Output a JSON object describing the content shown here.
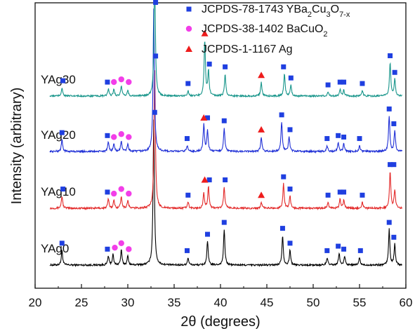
{
  "chart_data": {
    "type": "line",
    "xlabel": "2θ (degrees)",
    "ylabel": "Intensity (arbitrary)",
    "xlim": [
      20,
      60
    ],
    "x_ticks": [
      20,
      25,
      30,
      35,
      40,
      45,
      50,
      55,
      60
    ],
    "grid": false,
    "legend_placement": "top-right",
    "legend": [
      {
        "label_parts": [
          [
            "JCPDS-78-1743 YBa",
            false
          ],
          [
            "2",
            true
          ],
          [
            "Cu",
            false
          ],
          [
            "3",
            true
          ],
          [
            "O",
            false
          ],
          [
            "7-x",
            true
          ]
        ],
        "marker": "square",
        "color": "#1f3fe0"
      },
      {
        "label_parts": [
          [
            "JCPDS-38-1402 BaCuO",
            false
          ],
          [
            "2",
            true
          ]
        ],
        "marker": "circle",
        "color": "#f23ee8"
      },
      {
        "label_parts": [
          [
            "JCPDS-1-1167 Ag",
            false
          ]
        ],
        "marker": "triangle",
        "color": "#ee1c1c"
      }
    ],
    "series": [
      {
        "name": "YAg0",
        "color": "#000000",
        "peaks": [
          [
            22.9,
            0.1
          ],
          [
            27.9,
            0.06
          ],
          [
            28.4,
            0.07
          ],
          [
            29.3,
            0.1
          ],
          [
            30.0,
            0.06
          ],
          [
            32.8,
            0.98
          ],
          [
            36.5,
            0.05
          ],
          [
            38.6,
            0.16
          ],
          [
            40.4,
            0.24
          ],
          [
            46.7,
            0.2
          ],
          [
            47.5,
            0.1
          ],
          [
            51.5,
            0.05
          ],
          [
            52.8,
            0.08
          ],
          [
            53.4,
            0.06
          ],
          [
            55.0,
            0.05
          ],
          [
            58.2,
            0.24
          ],
          [
            58.8,
            0.14
          ]
        ],
        "markers": {
          "square": [
            22.9,
            27.8,
            32.9,
            36.4,
            38.6,
            40.4,
            46.7,
            47.5,
            51.5,
            52.7,
            53.3,
            55.1,
            58.2,
            58.7
          ],
          "circle": [
            28.6,
            29.3,
            30.1
          ],
          "triangle": []
        }
      },
      {
        "name": "YAg10",
        "color": "#e32a2a",
        "peaks": [
          [
            22.9,
            0.08
          ],
          [
            27.9,
            0.06
          ],
          [
            28.5,
            0.05
          ],
          [
            29.3,
            0.08
          ],
          [
            30.0,
            0.05
          ],
          [
            32.9,
            0.95
          ],
          [
            36.5,
            0.04
          ],
          [
            38.2,
            0.1
          ],
          [
            38.7,
            0.14
          ],
          [
            40.4,
            0.14
          ],
          [
            44.4,
            0.04
          ],
          [
            46.8,
            0.16
          ],
          [
            47.5,
            0.08
          ],
          [
            51.6,
            0.04
          ],
          [
            52.9,
            0.06
          ],
          [
            53.3,
            0.05
          ],
          [
            55.3,
            0.04
          ],
          [
            58.3,
            0.24
          ],
          [
            58.8,
            0.12
          ]
        ],
        "markers": {
          "square": [
            23.0,
            27.8,
            33.0,
            36.5,
            38.8,
            40.5,
            46.8,
            47.5,
            51.6,
            52.9,
            53.3,
            55.3,
            58.3,
            58.7
          ],
          "circle": [
            28.5,
            29.3,
            30.1
          ],
          "triangle": [
            38.3,
            44.4
          ]
        }
      },
      {
        "name": "YAg20",
        "color": "#1f2fd6",
        "peaks": [
          [
            22.9,
            0.08
          ],
          [
            27.9,
            0.06
          ],
          [
            28.5,
            0.05
          ],
          [
            29.3,
            0.07
          ],
          [
            30.0,
            0.05
          ],
          [
            32.8,
            0.96
          ],
          [
            36.4,
            0.04
          ],
          [
            38.2,
            0.18
          ],
          [
            38.6,
            0.14
          ],
          [
            40.4,
            0.16
          ],
          [
            44.4,
            0.1
          ],
          [
            46.6,
            0.2
          ],
          [
            47.4,
            0.1
          ],
          [
            51.5,
            0.04
          ],
          [
            52.7,
            0.06
          ],
          [
            53.3,
            0.05
          ],
          [
            55.0,
            0.04
          ],
          [
            58.2,
            0.24
          ],
          [
            58.8,
            0.14
          ]
        ],
        "markers": {
          "square": [
            22.9,
            27.8,
            33.0,
            36.4,
            38.6,
            40.4,
            46.6,
            47.5,
            51.5,
            52.7,
            53.3,
            55.0,
            58.2,
            58.7
          ],
          "circle": [
            28.5,
            29.3,
            30.1
          ],
          "triangle": [
            38.2,
            44.4
          ]
        }
      },
      {
        "name": "YAg30",
        "color": "#17958a",
        "peaks": [
          [
            22.9,
            0.06
          ],
          [
            27.9,
            0.05
          ],
          [
            28.5,
            0.05
          ],
          [
            29.3,
            0.07
          ],
          [
            30.0,
            0.04
          ],
          [
            32.9,
            0.92
          ],
          [
            36.5,
            0.04
          ],
          [
            38.3,
            0.4
          ],
          [
            38.7,
            0.18
          ],
          [
            40.5,
            0.16
          ],
          [
            44.4,
            0.1
          ],
          [
            46.9,
            0.16
          ],
          [
            47.6,
            0.08
          ],
          [
            51.6,
            0.03
          ],
          [
            52.9,
            0.05
          ],
          [
            53.3,
            0.04
          ],
          [
            55.3,
            0.04
          ],
          [
            58.3,
            0.24
          ],
          [
            58.8,
            0.12
          ]
        ],
        "markers": {
          "square": [
            23.0,
            27.8,
            33.0,
            36.5,
            38.8,
            40.5,
            46.8,
            47.6,
            51.6,
            52.9,
            53.3,
            55.3,
            58.3,
            58.8
          ],
          "circle": [
            28.5,
            29.3,
            30.1
          ],
          "triangle": [
            38.3,
            44.4
          ]
        }
      }
    ]
  }
}
